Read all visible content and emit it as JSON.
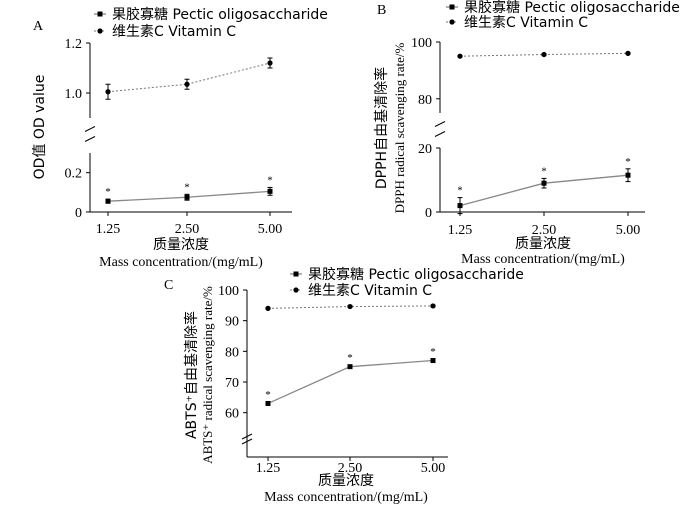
{
  "chart_data": [
    {
      "panel": "A",
      "type": "line",
      "categories": [
        "1.25",
        "2.50",
        "5.00"
      ],
      "xlabel_zh": "质量浓度",
      "xlabel_en": "Mass concentration/(mg/mL)",
      "ylabel": "OD值  OD value",
      "y_segments": [
        {
          "range": [
            0,
            0.3
          ],
          "ticks": [
            "0",
            "0.2"
          ]
        },
        {
          "range": [
            0.9,
            1.2
          ],
          "ticks": [
            "1.0",
            "1.2"
          ]
        }
      ],
      "legend": {
        "placement": "top"
      },
      "series": [
        {
          "name": "果胶寡糖  Pectic oligosaccharide",
          "marker": "square",
          "line": "solid",
          "values": [
            0.055,
            0.075,
            0.105
          ],
          "errors": [
            0.01,
            0.015,
            0.02
          ],
          "sig": [
            "*",
            "*",
            "*"
          ]
        },
        {
          "name": "维生素C  Vitamin C",
          "marker": "circle",
          "line": "dotted",
          "values": [
            1.005,
            1.035,
            1.12
          ],
          "errors": [
            0.03,
            0.02,
            0.02
          ],
          "sig": [
            "",
            "",
            ""
          ]
        }
      ]
    },
    {
      "panel": "B",
      "type": "line",
      "categories": [
        "1.25",
        "2.50",
        "5.00"
      ],
      "xlabel_zh": "质量浓度",
      "xlabel_en": "Mass concentration/(mg/mL)",
      "ylabel_zh": "DPPH自由基清除率",
      "ylabel_en": "DPPH radical scavenging rate/%",
      "y_segments": [
        {
          "range": [
            0,
            20
          ],
          "ticks": [
            "0",
            "20"
          ]
        },
        {
          "range": [
            75,
            100
          ],
          "ticks": [
            "80",
            "100"
          ]
        }
      ],
      "legend": {
        "placement": "top"
      },
      "series": [
        {
          "name": "果胶寡糖  Pectic oligosaccharide",
          "marker": "square",
          "line": "solid",
          "values": [
            2,
            9,
            11.5
          ],
          "errors": [
            2.5,
            1.5,
            2
          ],
          "sig": [
            "*",
            "*",
            "*"
          ]
        },
        {
          "name": "维生素C  Vitamin C",
          "marker": "circle",
          "line": "dotted",
          "values": [
            95,
            95.6,
            96
          ],
          "errors": [
            0.3,
            0.3,
            0.3
          ],
          "sig": [
            "",
            "",
            ""
          ]
        }
      ]
    },
    {
      "panel": "C",
      "type": "line",
      "categories": [
        "1.25",
        "2.50",
        "5.00"
      ],
      "xlabel_zh": "质量浓度",
      "xlabel_en": "Mass concentration/(mg/mL)",
      "ylabel_zh": "ABTS⁺自由基清除率",
      "ylabel_en": "ABTS⁺ radical scavenging rate/%",
      "y_segments": [
        {
          "range": [
            55,
            100
          ],
          "ticks": [
            "60",
            "70",
            "80",
            "90",
            "100"
          ]
        }
      ],
      "legend": {
        "placement": "top"
      },
      "series": [
        {
          "name": "果胶寡糖  Pectic oligosaccharide",
          "marker": "square",
          "line": "solid",
          "values": [
            63,
            75,
            77
          ],
          "errors": [
            0.5,
            0.5,
            0.5
          ],
          "sig": [
            "*",
            "*",
            "*"
          ]
        },
        {
          "name": "维生素C  Vitamin C",
          "marker": "circle",
          "line": "dotted",
          "values": [
            94,
            94.6,
            94.8
          ],
          "errors": [
            0.3,
            0.3,
            0.3
          ],
          "sig": [
            "",
            "",
            ""
          ]
        }
      ]
    }
  ]
}
